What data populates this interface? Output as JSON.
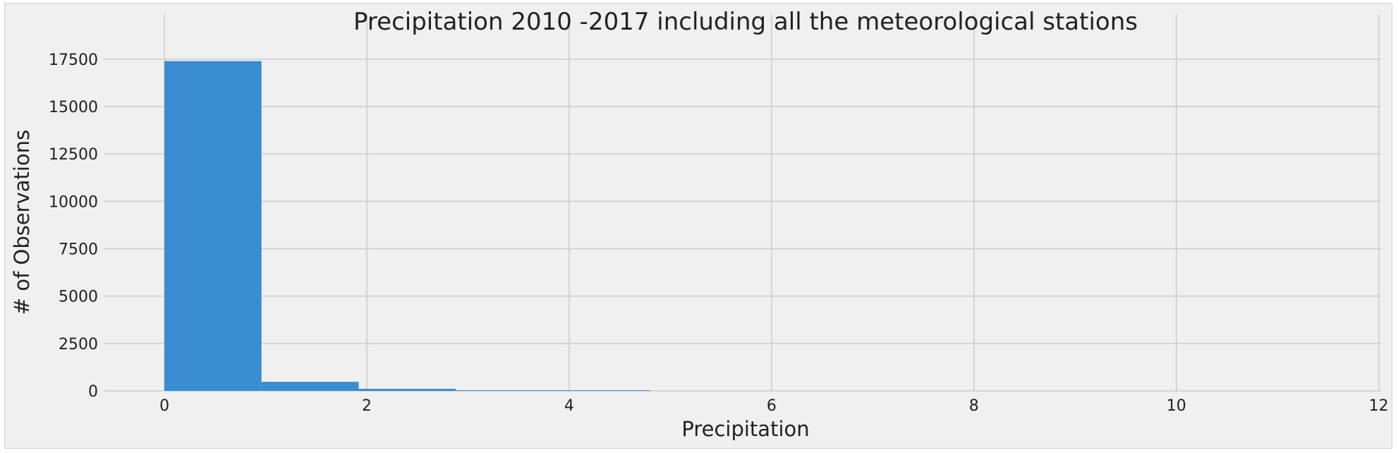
{
  "chart_data": {
    "type": "bar",
    "title": "Precipitation 2010 -2017 including all the meteorological stations",
    "xlabel": "Precipitation",
    "ylabel": "# of Observations",
    "xlim": [
      -0.6,
      12.1
    ],
    "ylim": [
      0,
      18500
    ],
    "xticks": [
      0,
      2,
      4,
      6,
      8,
      10,
      12
    ],
    "yticks": [
      0,
      2500,
      5000,
      7500,
      10000,
      12500,
      15000,
      17500
    ],
    "grid": true,
    "bins": [
      {
        "x0": 0.0,
        "x1": 0.96,
        "value": 17400
      },
      {
        "x0": 0.96,
        "x1": 1.92,
        "value": 480
      },
      {
        "x0": 1.92,
        "x1": 2.88,
        "value": 110
      },
      {
        "x0": 2.88,
        "x1": 3.84,
        "value": 10
      },
      {
        "x0": 3.84,
        "x1": 4.8,
        "value": 3
      }
    ],
    "colors": {
      "bar": "#3a8dd0",
      "background": "#f0f0f0",
      "grid": "#cbcbcb"
    }
  }
}
